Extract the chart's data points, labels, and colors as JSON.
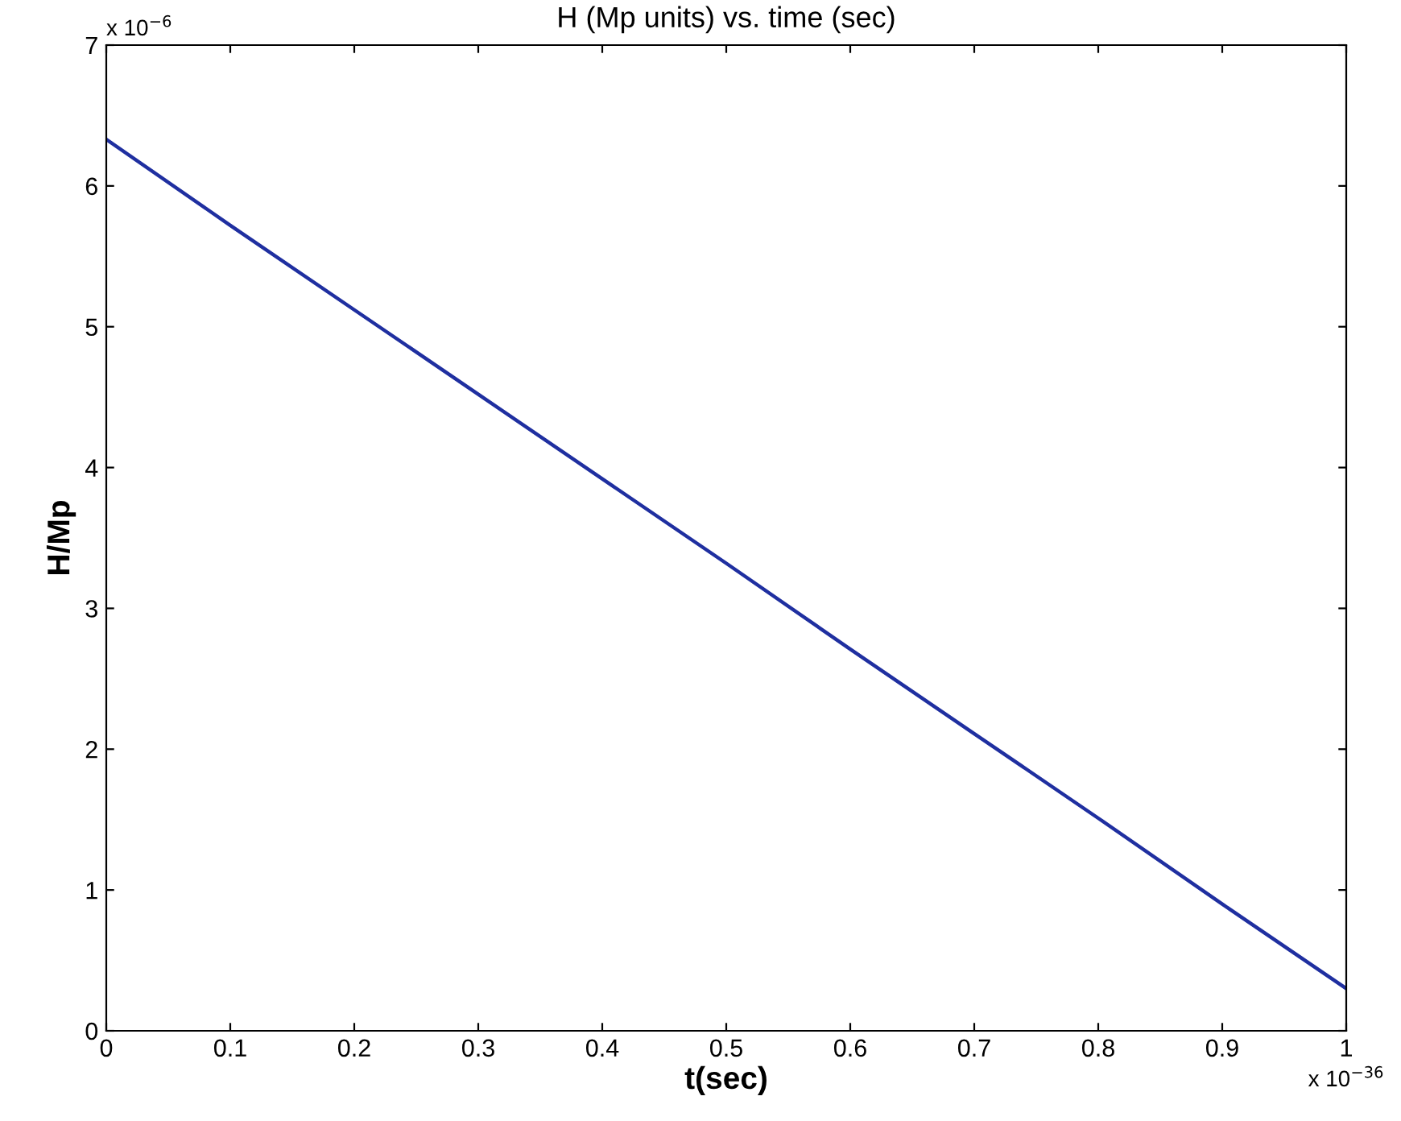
{
  "chart_data": {
    "type": "line",
    "title": "H (Mp units) vs. time (sec)",
    "xlabel": "t(sec)",
    "ylabel": "H/Mp",
    "x": [
      0,
      0.1,
      0.2,
      0.3,
      0.4,
      0.5,
      0.6,
      0.7,
      0.8,
      0.9,
      1
    ],
    "series": [
      {
        "color": "#1f2fa0",
        "values": [
          6.33,
          5.72,
          5.12,
          4.52,
          3.92,
          3.32,
          2.71,
          2.11,
          1.51,
          0.9,
          0.3
        ]
      }
    ],
    "xlim": [
      0,
      1
    ],
    "xticks": [
      0,
      0.1,
      0.2,
      0.3,
      0.4,
      0.5,
      0.6,
      0.7,
      0.8,
      0.9,
      1
    ],
    "ylim": [
      0,
      7
    ],
    "yticks": [
      0,
      1,
      2,
      3,
      4,
      5,
      6,
      7
    ],
    "annotations": [
      "x 10$^{−6}$",
      "x 10$^{−36}$"
    ],
    "grid": false,
    "legend": false
  }
}
